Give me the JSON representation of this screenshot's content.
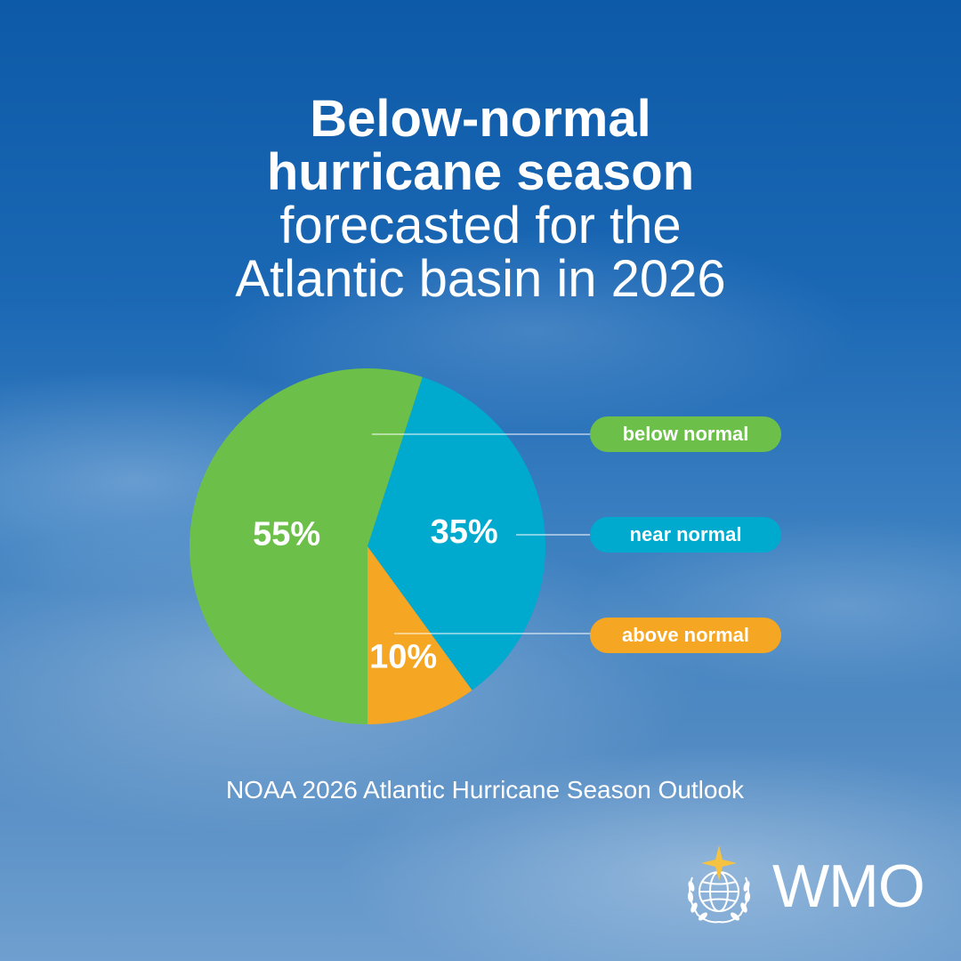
{
  "title": {
    "line1": "Below-normal",
    "line2": "hurricane season",
    "line3": "forecasted for the",
    "line4": "Atlantic basin in 2026"
  },
  "chart_data": {
    "type": "pie",
    "slices": [
      {
        "label": "below normal",
        "value": 55,
        "value_label": "55%",
        "color": "#6cc04a"
      },
      {
        "label": "near normal",
        "value": 35,
        "value_label": "35%",
        "color": "#00a9ce"
      },
      {
        "label": "above normal",
        "value": 10,
        "value_label": "10%",
        "color": "#f5a623"
      }
    ],
    "legend_placement": "right"
  },
  "source": "NOAA 2026 Atlantic Hurricane Season Outlook",
  "logo": {
    "text": "WMO",
    "icon": "wmo-emblem-icon"
  }
}
